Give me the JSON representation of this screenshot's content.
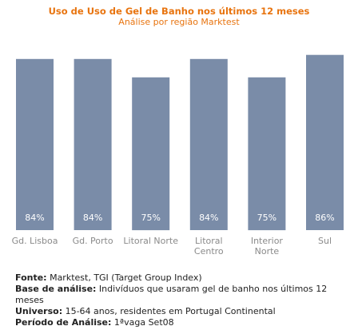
{
  "chart_data": {
    "type": "bar",
    "title": "Uso de Uso de Gel de Banho nos últimos 12 meses",
    "subtitle": "Análise por região Marktest",
    "categories": [
      [
        "Gd. Lisboa"
      ],
      [
        "Gd. Porto"
      ],
      [
        "Litoral Norte"
      ],
      [
        "Litoral",
        "Centro"
      ],
      [
        "Interior",
        "Norte"
      ],
      [
        "Sul"
      ]
    ],
    "values": [
      84,
      84,
      75,
      84,
      75,
      86
    ],
    "value_labels": [
      "84%",
      "84%",
      "75%",
      "84%",
      "75%",
      "86%"
    ],
    "ylim": [
      0,
      100
    ],
    "grid": false,
    "bar_color": "#7a8ca8",
    "title_color": "#e8740f"
  },
  "notes": [
    {
      "key": "Fonte:",
      "text": " Marktest, TGI (Target Group Index)"
    },
    {
      "key": "Base de análise:",
      "text": " Indivíduos que usaram gel de banho nos últimos 12 meses"
    },
    {
      "key": "Universo:",
      "text": " 15-64 anos, residentes em Portugal Continental"
    },
    {
      "key": "Período de Análise:",
      "text": " 1ªvaga Set08"
    }
  ]
}
